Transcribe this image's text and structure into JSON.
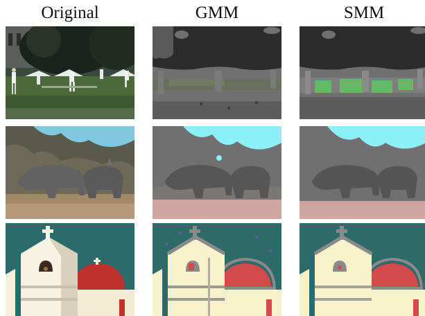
{
  "figure": {
    "columns": [
      {
        "id": "original",
        "title": "Original"
      },
      {
        "id": "gmm",
        "title": "GMM"
      },
      {
        "id": "smm",
        "title": "SMM"
      }
    ],
    "rows": [
      {
        "id": "cricket",
        "content": "cricket players on a field in front of dark trees"
      },
      {
        "id": "rhinos",
        "content": "two rhinoceroses grazing under a blue sky with trees"
      },
      {
        "id": "church",
        "content": "white church tower with a cross and red dome against a teal sky"
      }
    ],
    "colors": {
      "gmm_dark": "#2c2c2c",
      "gmm_mid": "#6f706f",
      "smm_green": "#66b866",
      "sky_cyan": "#8cf0f6",
      "ground_pink": "#cfa59f",
      "church_teal": "#2f6a6a",
      "dome_red": "#d24a4a",
      "cream": "#f6f2cc"
    }
  }
}
